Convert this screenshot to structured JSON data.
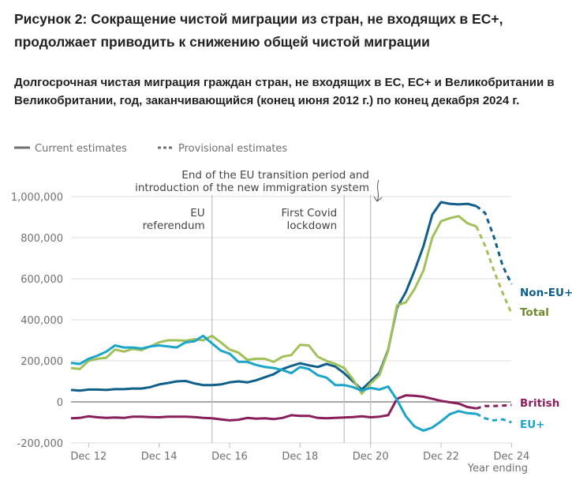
{
  "title": "Рисунок 2: Сокращение чистой миграции из стран, не входящих в ЕС+, продолжает приводить к снижению общей чистой миграции",
  "subtitle": "Долгосрочная чистая миграция граждан стран, не входящих в ЕС, ЕС+ и Великобритании в Великобритании, год, заканчивающийся (конец июня 2012 г.) по конец декабря 2024 г.",
  "legend": {
    "current": "Current estimates",
    "provisional": "Provisional estimates"
  },
  "chart_data": {
    "type": "line",
    "xlabel": "Year ending",
    "ylabel": "",
    "ylim": [
      -200000,
      1000000
    ],
    "grid": true,
    "x_start": "Jun 2012",
    "x_end": "Dec 2024",
    "x_frequency": "quarterly",
    "x_tick_labels": [
      "Dec 12",
      "Dec 14",
      "Dec 16",
      "Dec 18",
      "Dec 20",
      "Dec 22",
      "Dec 24"
    ],
    "y_tick_labels": [
      "-200,000",
      "0",
      "200,000",
      "400,000",
      "600,000",
      "800,000",
      "1,000,000"
    ],
    "provisional_from": "Dec 2023",
    "annotations": [
      {
        "x": "Jun 2016",
        "text": [
          "EU",
          "referendum"
        ]
      },
      {
        "x": "Mar 2020",
        "text": [
          "First Covid",
          "lockdown"
        ]
      },
      {
        "x": "Dec 2020",
        "text": [
          "End of the EU transition period and",
          "introduction of the new immigration system"
        ]
      }
    ],
    "series": [
      {
        "name": "Non-EU+",
        "color": "#0f5f8c",
        "values": [
          58000,
          55000,
          60000,
          60000,
          58000,
          62000,
          62000,
          65000,
          65000,
          72000,
          85000,
          92000,
          100000,
          102000,
          90000,
          82000,
          82000,
          85000,
          95000,
          100000,
          95000,
          105000,
          120000,
          135000,
          160000,
          175000,
          188000,
          178000,
          170000,
          185000,
          172000,
          140000,
          100000,
          60000,
          100000,
          142000,
          254000,
          458000,
          535000,
          640000,
          758000,
          912000,
          973000,
          965000,
          962000,
          965000,
          954000,
          920000,
          804000,
          662000,
          573000
        ]
      },
      {
        "name": "Total",
        "color": "#a2c05a",
        "values": [
          165000,
          160000,
          200000,
          210000,
          215000,
          255000,
          245000,
          258000,
          252000,
          270000,
          290000,
          300000,
          300000,
          298000,
          305000,
          300000,
          322000,
          290000,
          255000,
          240000,
          205000,
          210000,
          210000,
          195000,
          220000,
          228000,
          278000,
          275000,
          220000,
          200000,
          185000,
          165000,
          110000,
          40000,
          90000,
          130000,
          250000,
          470000,
          485000,
          550000,
          640000,
          800000,
          880000,
          895000,
          905000,
          870000,
          855000,
          760000,
          640000,
          530000,
          430000
        ]
      },
      {
        "name": "British",
        "color": "#8a1e5a",
        "values": [
          -80000,
          -78000,
          -70000,
          -75000,
          -78000,
          -76000,
          -78000,
          -72000,
          -72000,
          -74000,
          -75000,
          -72000,
          -72000,
          -72000,
          -74000,
          -78000,
          -80000,
          -85000,
          -90000,
          -87000,
          -78000,
          -82000,
          -80000,
          -84000,
          -78000,
          -65000,
          -68000,
          -68000,
          -78000,
          -80000,
          -78000,
          -76000,
          -74000,
          -70000,
          -75000,
          -72000,
          -65000,
          15000,
          32000,
          30000,
          25000,
          15000,
          5000,
          -2000,
          -8000,
          -25000,
          -32000,
          -20000,
          -20000,
          -18000,
          -15000
        ]
      },
      {
        "name": "EU+",
        "color": "#1aa5c9",
        "values": [
          190000,
          185000,
          210000,
          225000,
          245000,
          275000,
          265000,
          265000,
          260000,
          270000,
          275000,
          270000,
          265000,
          290000,
          295000,
          322000,
          285000,
          250000,
          235000,
          195000,
          195000,
          180000,
          170000,
          165000,
          155000,
          140000,
          170000,
          160000,
          130000,
          118000,
          82000,
          82000,
          72000,
          55000,
          68000,
          60000,
          75000,
          10000,
          -70000,
          -120000,
          -140000,
          -125000,
          -95000,
          -60000,
          -45000,
          -55000,
          -58000,
          -80000,
          -90000,
          -85000,
          -100000
        ]
      }
    ]
  }
}
